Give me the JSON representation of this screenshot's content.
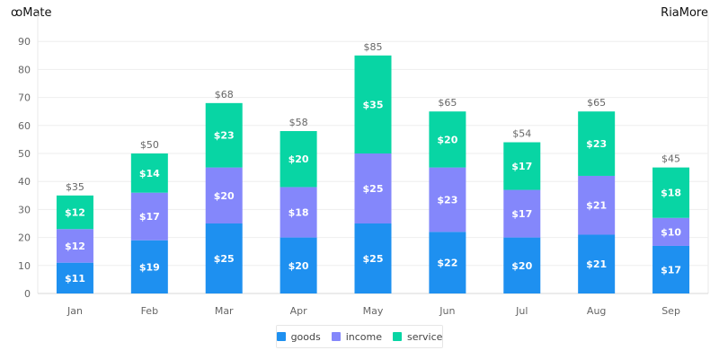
{
  "header": {
    "left_label": "ꝏMate",
    "right_label": "RiaMore"
  },
  "colors": {
    "goods": "#1e90f0",
    "income": "#8487fb",
    "service": "#08d5a4"
  },
  "chart_data": {
    "type": "bar",
    "stacked": true,
    "categories": [
      "Jan",
      "Feb",
      "Mar",
      "Apr",
      "May",
      "Jun",
      "Jul",
      "Aug",
      "Sep"
    ],
    "series": [
      {
        "name": "goods",
        "values": [
          11,
          19,
          25,
          20,
          25,
          22,
          20,
          21,
          17
        ],
        "labels": [
          "$11",
          "$19",
          "$25",
          "$20",
          "$25",
          "$22",
          "$20",
          "$21",
          "$17"
        ]
      },
      {
        "name": "income",
        "values": [
          12,
          17,
          20,
          18,
          25,
          23,
          17,
          21,
          10
        ],
        "labels": [
          "$12",
          "$17",
          "$20",
          "$18",
          "$25",
          "$23",
          "$17",
          "$21",
          "$10"
        ]
      },
      {
        "name": "service",
        "values": [
          12,
          14,
          23,
          20,
          35,
          20,
          17,
          23,
          18
        ],
        "labels": [
          "$12",
          "$14",
          "$23",
          "$20",
          "$35",
          "$20",
          "$17",
          "$23",
          "$18"
        ]
      }
    ],
    "totals": [
      "$35",
      "$50",
      "$68",
      "$58",
      "$85",
      "$65",
      "$54",
      "$65",
      "$45"
    ],
    "yticks": [
      "0",
      "10",
      "20",
      "30",
      "40",
      "50",
      "60",
      "70",
      "80",
      "90"
    ],
    "ylim": [
      0,
      100
    ],
    "grid": true,
    "legend_position": "bottom-center"
  }
}
